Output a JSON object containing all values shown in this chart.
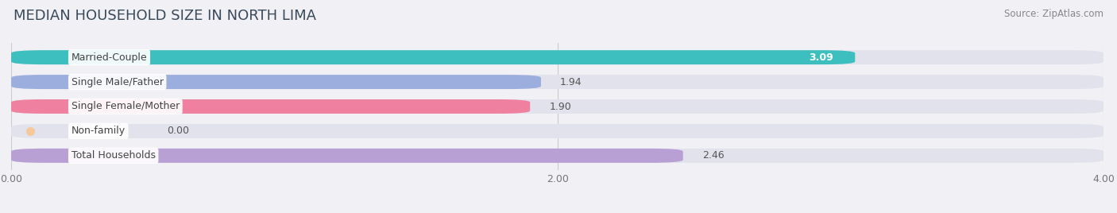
{
  "title": "MEDIAN HOUSEHOLD SIZE IN NORTH LIMA",
  "source": "Source: ZipAtlas.com",
  "categories": [
    "Married-Couple",
    "Single Male/Father",
    "Single Female/Mother",
    "Non-family",
    "Total Households"
  ],
  "values": [
    3.09,
    1.94,
    1.9,
    0.0,
    2.46
  ],
  "bar_colors": [
    "#3dbfbf",
    "#9baedd",
    "#f080a0",
    "#f5c99a",
    "#b89fd4"
  ],
  "bg_color": "#f0f0f5",
  "bar_bg_color": "#e2e2ec",
  "xlim": [
    0,
    4.0
  ],
  "xticks": [
    0.0,
    2.0,
    4.0
  ],
  "xtick_labels": [
    "0.00",
    "2.00",
    "4.00"
  ],
  "title_fontsize": 13,
  "label_fontsize": 9,
  "value_fontsize": 9,
  "source_fontsize": 8.5,
  "value_inside_threshold": 2.5,
  "bar_height": 0.58,
  "rounding_size": 0.12
}
